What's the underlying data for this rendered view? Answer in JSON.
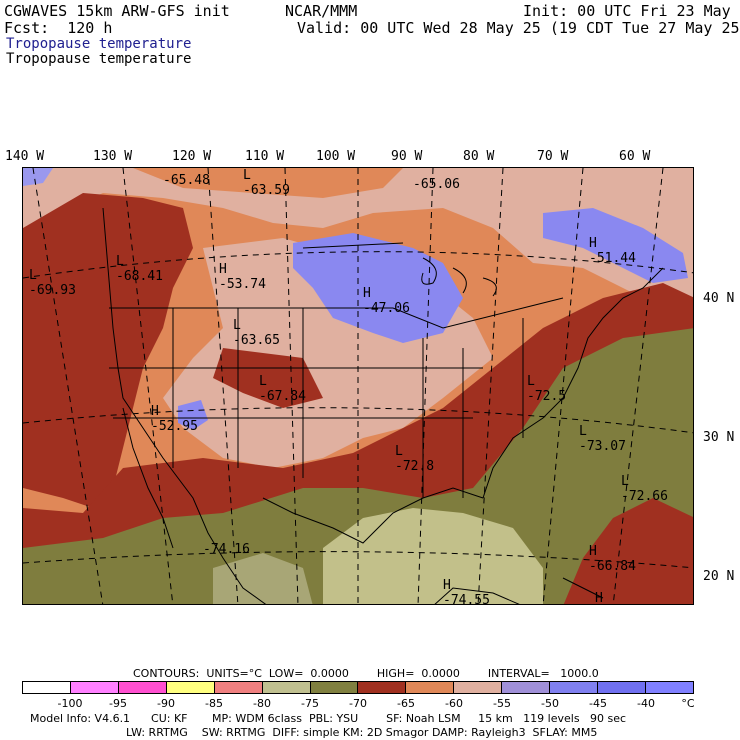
{
  "header": {
    "model": "CGWAVES 15km ARW-GFS init",
    "forecast": "Fcst:  120 h",
    "org": "NCAR/MMM",
    "init": "Init: 00 UTC Fri 23 May 25",
    "valid": "Valid: 00 UTC Wed 28 May 25 (19 CDT Tue 27 May 25)",
    "field_title_1": "Tropopause temperature",
    "field_title_2": "Tropopause temperature"
  },
  "map": {
    "lon_labels": [
      "140 W",
      "130 W",
      "120 W",
      "110 W",
      "100 W",
      "90 W",
      "80 W",
      "70 W",
      "60 W"
    ],
    "lat_labels": [
      "40 N",
      "30 N",
      "20 N"
    ],
    "centers": [
      {
        "type": "L",
        "value": "-65.48"
      },
      {
        "type": "L",
        "value": "-63.59"
      },
      {
        "type": "",
        "value": "-65.06"
      },
      {
        "type": "L",
        "value": "-69.93"
      },
      {
        "type": "L",
        "value": "-68.41"
      },
      {
        "type": "H",
        "value": "-53.74"
      },
      {
        "type": "H",
        "value": "-47.06"
      },
      {
        "type": "H",
        "value": "-51.44"
      },
      {
        "type": "L",
        "value": "-63.65"
      },
      {
        "type": "L",
        "value": "-67.84"
      },
      {
        "type": "H",
        "value": "-52.95"
      },
      {
        "type": "L",
        "value": "-72.5"
      },
      {
        "type": "L",
        "value": "-72.8"
      },
      {
        "type": "L",
        "value": "-73.07"
      },
      {
        "type": "L",
        "value": "-72.66"
      },
      {
        "type": "",
        "value": "-74.16"
      },
      {
        "type": "H",
        "value": "-66.84"
      },
      {
        "type": "H",
        "value": "-74.55"
      },
      {
        "type": "",
        "value": "H"
      }
    ]
  },
  "contours": {
    "units": "CONTOURS:  UNITS=°C  LOW=  0.0000        HIGH=  0.0000        INTERVAL=   1000.0"
  },
  "colorbar": {
    "colors": [
      "#ffffff",
      "#ff80ff",
      "#ff50d0",
      "#ffff80",
      "#f08080",
      "#c0c090",
      "#808040",
      "#a03020",
      "#e08858",
      "#e0b0a0",
      "#a090d8",
      "#8080f0",
      "#7070f0",
      "#8080ff"
    ],
    "labels": [
      "-100",
      "-95",
      "-90",
      "-85",
      "-80",
      "-75",
      "-70",
      "-65",
      "-60",
      "-55",
      "-50",
      "-45",
      "-40",
      "°C"
    ]
  },
  "footer": {
    "line1": "Model Info: V4.6.1      CU: KF       MP: WDM 6class  PBL: YSU        SF: Noah LSM     15 km   119 levels   90 sec",
    "line2": "LW: RRTMG    SW: RRTMG  DIFF: simple KM: 2D Smagor DAMP: Rayleigh3  SFLAY: MM5"
  }
}
